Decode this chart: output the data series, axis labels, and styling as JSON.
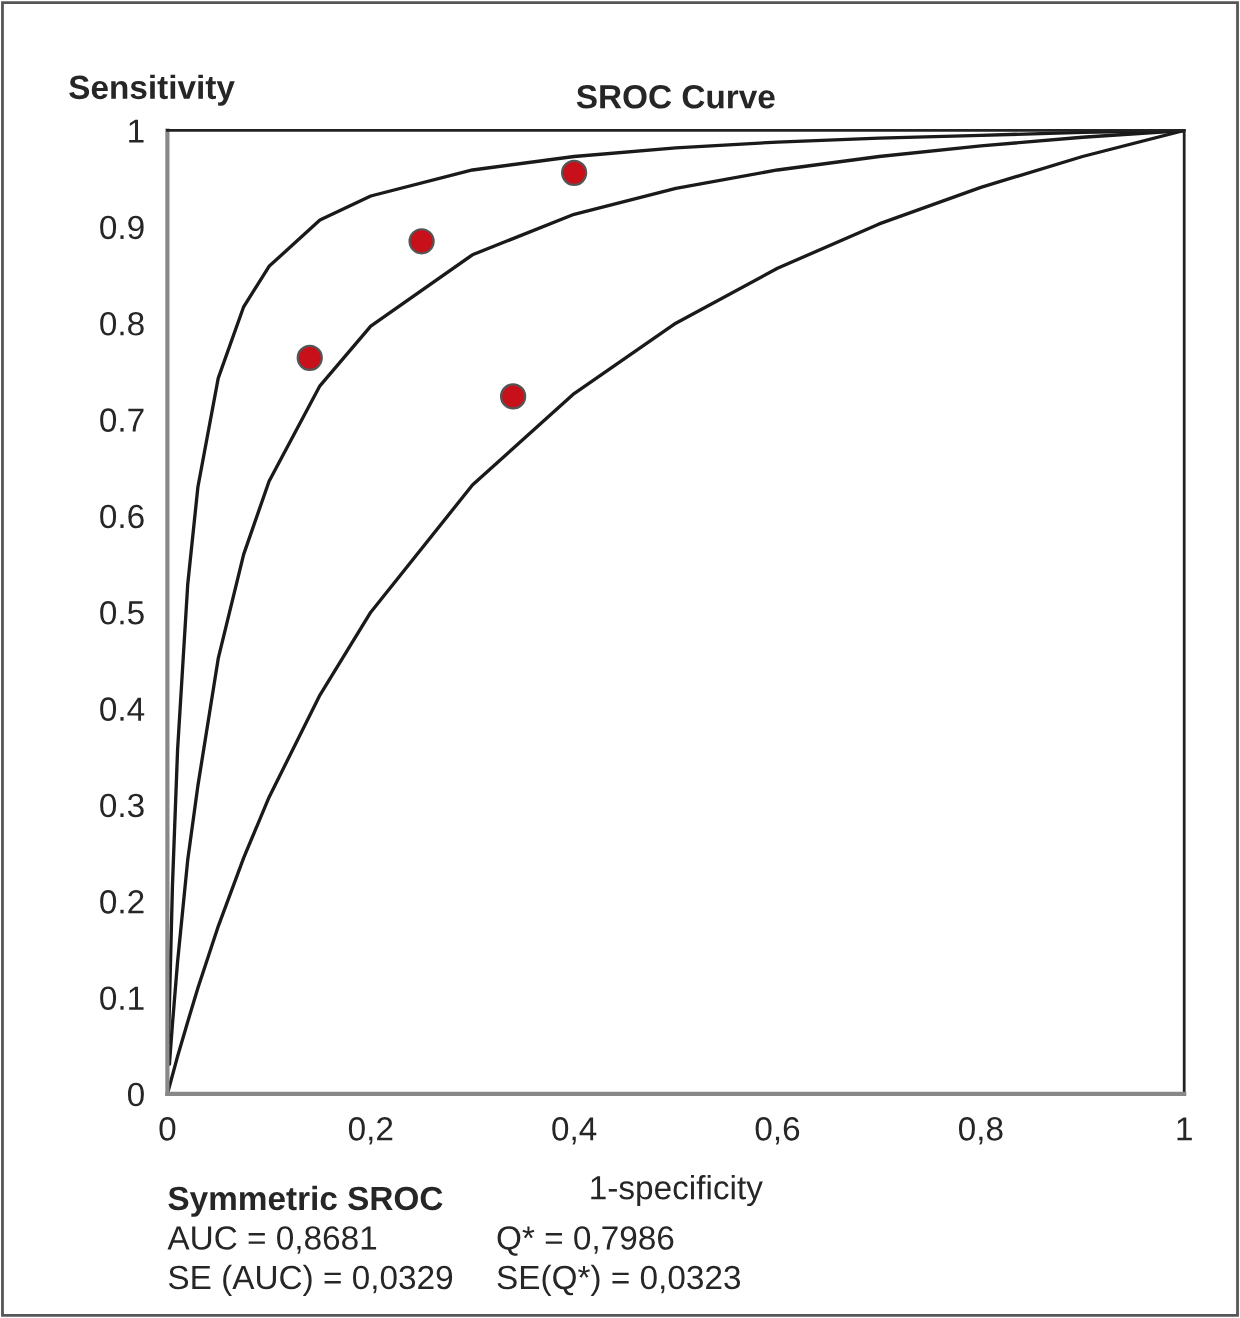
{
  "chart_data": {
    "type": "line",
    "title": "SROC Curve",
    "xlabel": "1-specificity",
    "ylabel": "Sensitivity",
    "xlim": [
      0,
      1
    ],
    "ylim": [
      0,
      1
    ],
    "xticks": [
      0,
      {
        "value": 0.2,
        "label": "0,2"
      },
      {
        "value": 0.4,
        "label": "0,4"
      },
      {
        "value": 0.6,
        "label": "0,6"
      },
      {
        "value": 0.8,
        "label": "0,8"
      },
      1
    ],
    "yticks": [
      0,
      0.1,
      0.2,
      0.3,
      0.4,
      0.5,
      0.6,
      0.7,
      0.8,
      0.9,
      1
    ],
    "grid": false,
    "legend": false,
    "series": [
      {
        "color": "#1a1a1a",
        "x": [
          0.001,
          0.005,
          0.01,
          0.02,
          0.03,
          0.05,
          0.075,
          0.1,
          0.15,
          0.2,
          0.3,
          0.4,
          0.5,
          0.6,
          0.7,
          0.8,
          0.9,
          1
        ],
        "values": [
          0.052,
          0.217,
          0.357,
          0.529,
          0.63,
          0.743,
          0.817,
          0.859,
          0.907,
          0.932,
          0.959,
          0.973,
          0.982,
          0.988,
          0.992,
          0.995,
          0.998,
          1
        ]
      },
      {
        "color": "#1a1a1a",
        "x": [
          0.002,
          0.005,
          0.01,
          0.02,
          0.03,
          0.05,
          0.075,
          0.1,
          0.15,
          0.2,
          0.3,
          0.4,
          0.5,
          0.6,
          0.7,
          0.8,
          0.9,
          1
        ],
        "values": [
          0.031,
          0.073,
          0.137,
          0.243,
          0.32,
          0.452,
          0.56,
          0.636,
          0.735,
          0.797,
          0.871,
          0.913,
          0.94,
          0.959,
          0.973,
          0.984,
          0.993,
          1
        ]
      },
      {
        "color": "#1a1a1a",
        "x": [
          0,
          0.01,
          0.02,
          0.03,
          0.05,
          0.075,
          0.1,
          0.15,
          0.2,
          0.3,
          0.4,
          0.5,
          0.6,
          0.7,
          0.8,
          0.9,
          1
        ],
        "values": [
          0,
          0.039,
          0.075,
          0.11,
          0.174,
          0.245,
          0.308,
          0.414,
          0.5,
          0.632,
          0.727,
          0.8,
          0.857,
          0.903,
          0.941,
          0.973,
          1
        ]
      },
      {
        "type": "scatter",
        "marker": "circle",
        "color": "#c8101a",
        "x": [
          0.14,
          0.25,
          0.4,
          0.34
        ],
        "values": [
          0.764,
          0.885,
          0.956,
          0.724
        ]
      }
    ],
    "annotations": [
      "Symmetric SROC",
      "AUC = 0,8681",
      "Q* = 0,7986",
      "SE (AUC) = 0,0329",
      "SE(Q*) = 0,0323"
    ]
  }
}
